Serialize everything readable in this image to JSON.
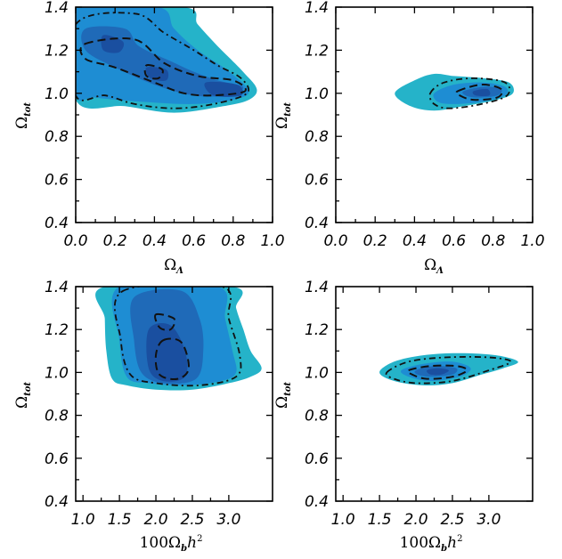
{
  "colors": {
    "level1": "#25B3C9",
    "level2": "#1E8DD3",
    "level3": "#1F6AB8",
    "level4": "#1A4FA0",
    "contour": "#111111"
  },
  "chart_data": [
    {
      "type": "contour",
      "panel": "top-left",
      "xlim": [
        0.0,
        1.0
      ],
      "ylim": [
        0.4,
        1.4
      ],
      "xticks": [
        "0.0",
        "0.2",
        "0.4",
        "0.6",
        "0.8",
        "1.0"
      ],
      "yticks": [
        "0.4",
        "0.6",
        "0.8",
        "1.0",
        "1.2",
        "1.4"
      ],
      "xlabel": {
        "main": "Ω",
        "sub": "Λ",
        "sup": ""
      },
      "ylabel": {
        "main": "Ω",
        "sub": "tot"
      },
      "regions": [
        {
          "level": 1,
          "points": [
            [
              0.0,
              1.4
            ],
            [
              0.55,
              1.4
            ],
            [
              0.62,
              1.32
            ],
            [
              0.72,
              1.22
            ],
            [
              0.85,
              1.1
            ],
            [
              0.92,
              1.02
            ],
            [
              0.88,
              0.97
            ],
            [
              0.75,
              0.94
            ],
            [
              0.5,
              0.91
            ],
            [
              0.25,
              0.94
            ],
            [
              0.0,
              0.97
            ]
          ]
        },
        {
          "level": 2,
          "points": [
            [
              0.0,
              1.4
            ],
            [
              0.42,
              1.4
            ],
            [
              0.5,
              1.3
            ],
            [
              0.62,
              1.2
            ],
            [
              0.78,
              1.1
            ],
            [
              0.88,
              1.01
            ],
            [
              0.8,
              0.97
            ],
            [
              0.6,
              0.95
            ],
            [
              0.35,
              0.96
            ],
            [
              0.1,
              0.98
            ],
            [
              0.0,
              1.0
            ]
          ]
        },
        {
          "level": 3,
          "points": [
            [
              0.05,
              1.3
            ],
            [
              0.25,
              1.3
            ],
            [
              0.32,
              1.22
            ],
            [
              0.48,
              1.15
            ],
            [
              0.6,
              1.1
            ],
            [
              0.72,
              1.06
            ],
            [
              0.85,
              1.03
            ],
            [
              0.78,
              0.99
            ],
            [
              0.6,
              0.99
            ],
            [
              0.4,
              1.04
            ],
            [
              0.2,
              1.12
            ],
            [
              0.05,
              1.2
            ]
          ]
        },
        {
          "level": 4,
          "points": [
            [
              0.14,
              1.27
            ],
            [
              0.24,
              1.24
            ],
            [
              0.22,
              1.19
            ],
            [
              0.14,
              1.2
            ]
          ]
        },
        {
          "level": 4,
          "points": [
            [
              0.36,
              1.12
            ],
            [
              0.46,
              1.11
            ],
            [
              0.46,
              1.06
            ],
            [
              0.38,
              1.07
            ]
          ]
        },
        {
          "level": 4,
          "points": [
            [
              0.66,
              1.05
            ],
            [
              0.82,
              1.04
            ],
            [
              0.84,
              0.99
            ],
            [
              0.7,
              0.99
            ]
          ]
        }
      ],
      "contours": [
        {
          "level": "68",
          "points": [
            [
              0.05,
              1.23
            ],
            [
              0.3,
              1.25
            ],
            [
              0.45,
              1.14
            ],
            [
              0.62,
              1.08
            ],
            [
              0.8,
              1.06
            ],
            [
              0.86,
              1.01
            ],
            [
              0.7,
              0.99
            ],
            [
              0.55,
              1.0
            ],
            [
              0.4,
              1.05
            ],
            [
              0.2,
              1.12
            ],
            [
              0.05,
              1.16
            ]
          ]
        },
        {
          "level": "68",
          "points": [
            [
              0.36,
              1.13
            ],
            [
              0.44,
              1.11
            ],
            [
              0.42,
              1.07
            ],
            [
              0.36,
              1.08
            ]
          ]
        },
        {
          "level": "95",
          "points": [
            [
              0.0,
              1.32
            ],
            [
              0.3,
              1.37
            ],
            [
              0.45,
              1.28
            ],
            [
              0.6,
              1.2
            ],
            [
              0.72,
              1.13
            ],
            [
              0.84,
              1.07
            ],
            [
              0.87,
              1.0
            ],
            [
              0.7,
              0.95
            ],
            [
              0.5,
              0.93
            ],
            [
              0.3,
              0.95
            ],
            [
              0.15,
              0.99
            ],
            [
              0.0,
              0.99
            ]
          ]
        }
      ]
    },
    {
      "type": "contour",
      "panel": "top-right",
      "xlim": [
        0.0,
        1.0
      ],
      "ylim": [
        0.4,
        1.4
      ],
      "xticks": [
        "0.0",
        "0.2",
        "0.4",
        "0.6",
        "0.8",
        "1.0"
      ],
      "yticks": [
        "0.4",
        "0.6",
        "0.8",
        "1.0",
        "1.2",
        "1.4"
      ],
      "xlabel": {
        "main": "Ω",
        "sub": "Λ",
        "sup": ""
      },
      "ylabel": {
        "main": "Ω",
        "sub": "tot"
      },
      "regions": [
        {
          "level": 1,
          "points": [
            [
              0.3,
              1.0
            ],
            [
              0.4,
              1.06
            ],
            [
              0.5,
              1.09
            ],
            [
              0.6,
              1.08
            ],
            [
              0.75,
              1.07
            ],
            [
              0.88,
              1.05
            ],
            [
              0.9,
              1.0
            ],
            [
              0.82,
              0.97
            ],
            [
              0.65,
              0.94
            ],
            [
              0.5,
              0.92
            ],
            [
              0.38,
              0.94
            ]
          ]
        },
        {
          "level": 2,
          "points": [
            [
              0.5,
              1.0
            ],
            [
              0.6,
              1.04
            ],
            [
              0.75,
              1.05
            ],
            [
              0.86,
              1.03
            ],
            [
              0.86,
              0.99
            ],
            [
              0.74,
              0.96
            ],
            [
              0.6,
              0.95
            ],
            [
              0.52,
              0.96
            ]
          ]
        },
        {
          "level": 3,
          "points": [
            [
              0.65,
              1.01
            ],
            [
              0.75,
              1.03
            ],
            [
              0.84,
              1.02
            ],
            [
              0.82,
              0.99
            ],
            [
              0.72,
              0.98
            ],
            [
              0.66,
              0.99
            ]
          ]
        },
        {
          "level": 4,
          "points": [
            [
              0.7,
              1.01
            ],
            [
              0.77,
              1.02
            ],
            [
              0.78,
              0.99
            ],
            [
              0.71,
              0.99
            ]
          ]
        }
      ],
      "contours": [
        {
          "level": "68",
          "points": [
            [
              0.62,
              1.01
            ],
            [
              0.74,
              1.04
            ],
            [
              0.84,
              1.02
            ],
            [
              0.82,
              0.98
            ],
            [
              0.7,
              0.97
            ],
            [
              0.63,
              0.99
            ]
          ]
        },
        {
          "level": "95",
          "points": [
            [
              0.48,
              1.0
            ],
            [
              0.55,
              1.05
            ],
            [
              0.7,
              1.07
            ],
            [
              0.86,
              1.05
            ],
            [
              0.87,
              0.99
            ],
            [
              0.74,
              0.95
            ],
            [
              0.58,
              0.93
            ],
            [
              0.5,
              0.95
            ]
          ]
        }
      ]
    },
    {
      "type": "contour",
      "panel": "bottom-left",
      "xlim": [
        0.9,
        3.6
      ],
      "ylim": [
        0.4,
        1.4
      ],
      "xticks": [
        "1.0",
        "1.5",
        "2.0",
        "2.5",
        "3.0"
      ],
      "yticks": [
        "0.4",
        "0.6",
        "0.8",
        "1.0",
        "1.2",
        "1.4"
      ],
      "xlabel": {
        "main": "100Ω",
        "sub": "b",
        "sup": "2"
      },
      "ylabel": {
        "main": "Ω",
        "sub": "tot"
      },
      "regions": [
        {
          "level": 1,
          "points": [
            [
              1.3,
              1.4
            ],
            [
              3.05,
              1.4
            ],
            [
              3.1,
              1.3
            ],
            [
              3.2,
              1.2
            ],
            [
              3.3,
              1.1
            ],
            [
              3.45,
              1.02
            ],
            [
              3.3,
              0.98
            ],
            [
              3.0,
              0.95
            ],
            [
              2.5,
              0.92
            ],
            [
              2.0,
              0.92
            ],
            [
              1.6,
              0.94
            ],
            [
              1.4,
              0.97
            ],
            [
              1.32,
              1.1
            ],
            [
              1.3,
              1.25
            ]
          ]
        },
        {
          "level": 2,
          "points": [
            [
              1.5,
              1.4
            ],
            [
              2.85,
              1.4
            ],
            [
              2.95,
              1.25
            ],
            [
              3.05,
              1.1
            ],
            [
              3.1,
              1.0
            ],
            [
              2.9,
              0.96
            ],
            [
              2.4,
              0.94
            ],
            [
              1.9,
              0.95
            ],
            [
              1.6,
              0.98
            ],
            [
              1.5,
              1.15
            ]
          ]
        },
        {
          "level": 3,
          "points": [
            [
              1.7,
              1.35
            ],
            [
              2.35,
              1.38
            ],
            [
              2.6,
              1.25
            ],
            [
              2.65,
              1.1
            ],
            [
              2.55,
              0.97
            ],
            [
              2.1,
              0.95
            ],
            [
              1.8,
              1.0
            ],
            [
              1.7,
              1.15
            ]
          ]
        },
        {
          "level": 4,
          "points": [
            [
              1.9,
              1.2
            ],
            [
              2.2,
              1.22
            ],
            [
              2.4,
              1.1
            ],
            [
              2.4,
              0.98
            ],
            [
              2.1,
              0.96
            ],
            [
              1.9,
              1.02
            ]
          ]
        }
      ],
      "contours": [
        {
          "level": "68",
          "points": [
            [
              2.1,
              1.15
            ],
            [
              2.35,
              1.14
            ],
            [
              2.45,
              1.02
            ],
            [
              2.3,
              0.97
            ],
            [
              2.05,
              0.99
            ],
            [
              2.0,
              1.08
            ]
          ]
        },
        {
          "level": "68",
          "points": [
            [
              2.0,
              1.27
            ],
            [
              2.25,
              1.25
            ],
            [
              2.2,
              1.2
            ],
            [
              2.05,
              1.21
            ]
          ]
        },
        {
          "level": "95",
          "points": [
            [
              1.55,
              1.38
            ],
            [
              2.9,
              1.4
            ],
            [
              3.0,
              1.25
            ],
            [
              3.15,
              1.08
            ],
            [
              3.1,
              0.98
            ],
            [
              2.6,
              0.94
            ],
            [
              2.0,
              0.95
            ],
            [
              1.65,
              0.99
            ],
            [
              1.52,
              1.15
            ]
          ]
        }
      ]
    },
    {
      "type": "contour",
      "panel": "bottom-right",
      "xlim": [
        0.9,
        3.6
      ],
      "ylim": [
        0.4,
        1.4
      ],
      "xticks": [
        "1.0",
        "1.5",
        "2.0",
        "2.5",
        "3.0"
      ],
      "yticks": [
        "0.4",
        "0.6",
        "0.8",
        "1.0",
        "1.2",
        "1.4"
      ],
      "xlabel": {
        "main": "100Ω",
        "sub": "b",
        "sup": "2"
      },
      "ylabel": {
        "main": "Ω",
        "sub": "tot"
      },
      "regions": [
        {
          "level": 1,
          "points": [
            [
              1.5,
              1.0
            ],
            [
              1.7,
              1.05
            ],
            [
              2.1,
              1.08
            ],
            [
              2.6,
              1.09
            ],
            [
              3.1,
              1.08
            ],
            [
              3.4,
              1.05
            ],
            [
              3.2,
              1.02
            ],
            [
              2.9,
              0.99
            ],
            [
              2.5,
              0.95
            ],
            [
              2.1,
              0.94
            ],
            [
              1.7,
              0.96
            ]
          ]
        },
        {
          "level": 2,
          "points": [
            [
              1.8,
              1.01
            ],
            [
              2.1,
              1.04
            ],
            [
              2.5,
              1.05
            ],
            [
              2.75,
              1.02
            ],
            [
              2.6,
              0.98
            ],
            [
              2.2,
              0.96
            ],
            [
              1.9,
              0.98
            ]
          ]
        },
        {
          "level": 3,
          "points": [
            [
              2.0,
              1.01
            ],
            [
              2.25,
              1.03
            ],
            [
              2.55,
              1.02
            ],
            [
              2.5,
              0.99
            ],
            [
              2.2,
              0.98
            ],
            [
              2.02,
              0.99
            ]
          ]
        },
        {
          "level": 4,
          "points": [
            [
              2.15,
              1.01
            ],
            [
              2.3,
              1.02
            ],
            [
              2.45,
              1.01
            ],
            [
              2.35,
              0.99
            ],
            [
              2.2,
              0.99
            ]
          ]
        }
      ],
      "contours": [
        {
          "level": "68",
          "points": [
            [
              1.9,
              1.01
            ],
            [
              2.2,
              1.03
            ],
            [
              2.55,
              1.03
            ],
            [
              2.7,
              1.01
            ],
            [
              2.5,
              0.98
            ],
            [
              2.15,
              0.97
            ],
            [
              1.95,
              0.99
            ]
          ]
        },
        {
          "level": "95",
          "points": [
            [
              1.6,
              1.0
            ],
            [
              1.9,
              1.05
            ],
            [
              2.4,
              1.07
            ],
            [
              3.0,
              1.07
            ],
            [
              3.3,
              1.05
            ],
            [
              3.0,
              1.01
            ],
            [
              2.5,
              0.96
            ],
            [
              2.0,
              0.95
            ],
            [
              1.7,
              0.97
            ]
          ]
        }
      ]
    }
  ]
}
